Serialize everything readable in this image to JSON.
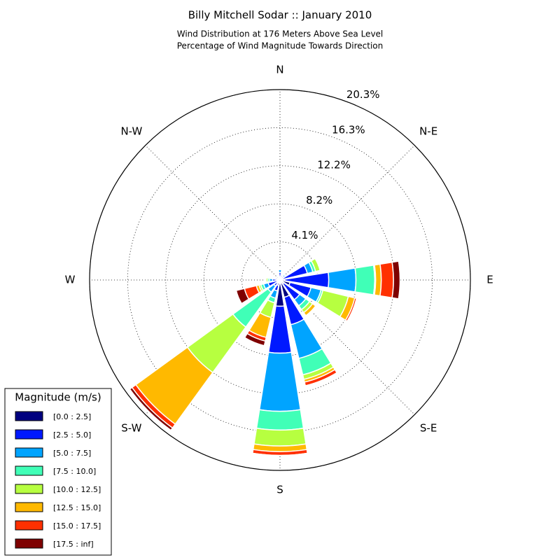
{
  "chart_data": {
    "type": "windrose",
    "title": "Billy Mitchell Sodar :: January 2010",
    "subtitle": [
      "Wind Distribution at 176 Meters Above Sea Level",
      "Percentage of Wind Magnitude Towards Direction"
    ],
    "categories": [
      "N",
      null,
      "N-E",
      null,
      "E",
      null,
      "S-E",
      null,
      "S",
      null,
      "S-W",
      null,
      "W",
      null,
      "N-W",
      null
    ],
    "ylim": [
      0,
      20.3
    ],
    "yticks": [
      {
        "value": 4.06,
        "label": "4.1%"
      },
      {
        "value": 8.12,
        "label": "8.2%"
      },
      {
        "value": 12.18,
        "label": "12.2%"
      },
      {
        "value": 16.24,
        "label": "16.3%"
      },
      {
        "value": 20.3,
        "label": "20.3%"
      }
    ],
    "grid": true,
    "legend": "lower left",
    "legend_title": "Magnitude (m/s)",
    "series": [
      {
        "name": "[0.0 : 2.5]",
        "color": "#00007f",
        "values": [
          0.3,
          0.2,
          0.2,
          0.3,
          0.5,
          1.1,
          0.5,
          1.9,
          2.8,
          0.6,
          0.4,
          0.3,
          0.3,
          0.2,
          0.1,
          0.1
        ]
      },
      {
        "name": "[2.5 : 5.0]",
        "color": "#0019ff",
        "values": [
          0.5,
          0.3,
          0.3,
          2.7,
          4.7,
          2.3,
          2.1,
          3.0,
          5.0,
          0.6,
          0.4,
          1.0,
          0.5,
          0.3,
          0.2,
          0.2
        ]
      },
      {
        "name": "[5.0 : 7.5]",
        "color": "#00a4ff",
        "values": [
          0.3,
          0.1,
          0.2,
          0.6,
          2.9,
          1.1,
          0.8,
          3.7,
          6.2,
          0.8,
          0.8,
          0.5,
          0.3,
          0.1,
          0,
          0.1
        ]
      },
      {
        "name": "[7.5 : 10.0]",
        "color": "#40ffb7",
        "values": [
          0.1,
          0,
          0.1,
          0.3,
          2.0,
          0.2,
          0.5,
          1.8,
          2.0,
          0.5,
          4.6,
          0.3,
          0.2,
          0,
          0,
          0
        ]
      },
      {
        "name": "[10.0 : 12.5]",
        "color": "#b7ff40",
        "values": [
          0,
          0,
          0,
          0.5,
          0.1,
          2.8,
          0.4,
          0.5,
          1.7,
          1.6,
          6.0,
          0.2,
          0.2,
          0,
          0,
          0
        ]
      },
      {
        "name": "[12.5 : 15.0]",
        "color": "#ffb900",
        "values": [
          0,
          0,
          0,
          0,
          0.6,
          0.7,
          0.4,
          0.3,
          0.6,
          2.2,
          6.8,
          0.3,
          0,
          0,
          0,
          0
        ]
      },
      {
        "name": "[15.0 : 17.5]",
        "color": "#ff3000",
        "values": [
          0,
          0,
          0,
          0,
          1.3,
          0.2,
          0.1,
          0.4,
          0.4,
          0.4,
          0.5,
          1.3,
          0,
          0,
          0,
          0
        ]
      },
      {
        "name": "[17.5 : inf]",
        "color": "#7f0000",
        "values": [
          0,
          0,
          0,
          0,
          0.7,
          0,
          0,
          0,
          0,
          0.5,
          0.3,
          0.9,
          0,
          0,
          0,
          0
        ]
      }
    ]
  }
}
